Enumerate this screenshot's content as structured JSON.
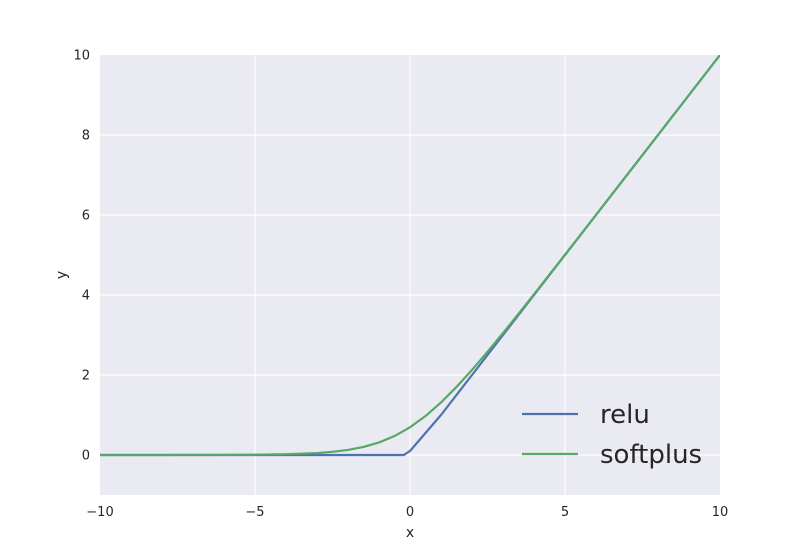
{
  "chart_data": {
    "type": "line",
    "title": "",
    "xlabel": "x",
    "ylabel": "y",
    "xlim": [
      -10,
      10
    ],
    "ylim": [
      -1,
      10
    ],
    "grid": true,
    "legend": "lower-right",
    "background_color": "#eaeaf2",
    "grid_color": "#ffffff",
    "x_ticks": [
      -10,
      -5,
      0,
      5,
      10
    ],
    "x_tick_labels": [
      "−10",
      "−5",
      "0",
      "5",
      "10"
    ],
    "y_ticks": [
      0,
      2,
      4,
      6,
      8,
      10
    ],
    "y_tick_labels": [
      "0",
      "2",
      "4",
      "6",
      "8",
      "10"
    ],
    "series": [
      {
        "name": "relu",
        "color": "#4c72b0",
        "x": [
          -10,
          -8,
          -6,
          -4,
          -2,
          -1,
          -0.2,
          0,
          1,
          2,
          3,
          4,
          5,
          6,
          7,
          8,
          9,
          10
        ],
        "y": [
          0,
          0,
          0,
          0,
          0,
          0,
          0,
          0.1,
          1,
          2,
          3,
          4,
          5,
          6,
          7,
          8,
          9,
          10
        ]
      },
      {
        "name": "softplus",
        "color": "#55a868",
        "x": [
          -10,
          -8,
          -6,
          -5,
          -4,
          -3,
          -2.5,
          -2,
          -1.5,
          -1,
          -0.5,
          0,
          0.5,
          1,
          1.5,
          2,
          2.5,
          3,
          3.5,
          4,
          5,
          6,
          7,
          8,
          9,
          10
        ],
        "y": [
          0,
          0.0003,
          0.0025,
          0.0067,
          0.018,
          0.049,
          0.079,
          0.127,
          0.201,
          0.313,
          0.474,
          0.693,
          0.974,
          1.313,
          1.701,
          2.127,
          2.579,
          3.049,
          3.53,
          4.018,
          5.007,
          6.002,
          7.001,
          8.0,
          9.0,
          10.0
        ]
      }
    ]
  }
}
